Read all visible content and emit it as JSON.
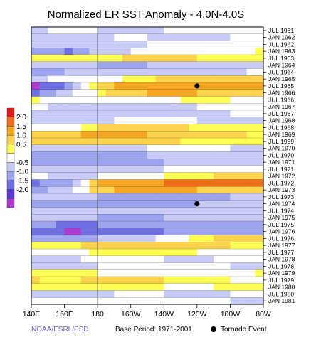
{
  "chart_data": {
    "type": "heatmap",
    "title": "Normalized ER SST Anomaly - 4.0N-4.0S",
    "x_tick_labels": [
      "140E",
      "160E",
      "180",
      "160W",
      "140W",
      "120W",
      "100W",
      "80W"
    ],
    "x_range": [
      140,
      280
    ],
    "y_tick_labels": [
      "JUL 1961",
      "JAN 1962",
      "JUL 1962",
      "JAN 1963",
      "JUL 1963",
      "JAN 1964",
      "JUL 1964",
      "JAN 1965",
      "JUL 1965",
      "JAN 1966",
      "JUL 1966",
      "JAN 1967",
      "JUL 1967",
      "JAN 1968",
      "JUL 1968",
      "JAN 1969",
      "JUL 1969",
      "JAN 1970",
      "JUL 1970",
      "JAN 1971",
      "JUL 1971",
      "JAN 1972",
      "JUL 1972",
      "JAN 1973",
      "JUL 1973",
      "JAN 1974",
      "JUL 1974",
      "JAN 1975",
      "JUL 1975",
      "JAN 1976",
      "JUL 1976",
      "JAN 1977",
      "JUL 1977",
      "JAN 1978",
      "JUL 1978",
      "JAN 1979",
      "JUL 1979",
      "JAN 1980",
      "JUL 1980",
      "JAN 1981"
    ],
    "colorbar_labels": [
      "2.0",
      "1.5",
      "1.0",
      "0.5",
      "-0.5",
      "-1.0",
      "-1.5",
      "-2.0"
    ],
    "colorbar_colors": [
      "#e01a1a",
      "#ef6c1a",
      "#f5a623",
      "#fcd34d",
      "#fefe55",
      "#ffffff",
      "#c7cbf5",
      "#9da4ef",
      "#6d6fe2",
      "#5c3ad6",
      "#b03ad0"
    ],
    "bands": [
      {
        "date": "JUL 1961",
        "anomaly": [
          -0.6,
          -0.4,
          -0.5,
          -0.7,
          -0.5,
          -0.3,
          -0.2,
          -0.4
        ]
      },
      {
        "date": "JAN 1962",
        "anomaly": [
          -0.8,
          -1.0,
          -0.6,
          -0.4,
          -0.6,
          -0.7,
          -0.5,
          -0.3
        ]
      },
      {
        "date": "JUL 1962",
        "anomaly": [
          -0.5,
          -0.7,
          -0.9,
          -0.6,
          -0.4,
          -0.3,
          -0.2,
          -0.1
        ]
      },
      {
        "date": "JAN 1963",
        "anomaly": [
          -1.0,
          -1.6,
          -0.8,
          -0.5,
          -0.3,
          -0.2,
          0.1,
          0.2
        ]
      },
      {
        "date": "JUL 1963",
        "anomaly": [
          0.4,
          0.2,
          0.3,
          0.6,
          0.7,
          0.5,
          0.4,
          0.3
        ]
      },
      {
        "date": "JAN 1964",
        "anomaly": [
          -0.6,
          -0.8,
          -1.0,
          -1.1,
          -0.9,
          -0.7,
          -0.8,
          -0.6
        ]
      },
      {
        "date": "JUL 1964",
        "anomaly": [
          -1.2,
          -1.0,
          -0.8,
          -0.6,
          -0.5,
          -0.7,
          -0.6,
          -0.4
        ]
      },
      {
        "date": "JAN 1965",
        "anomaly": [
          -0.6,
          -0.4,
          -0.2,
          0.3,
          0.6,
          0.8,
          1.0,
          0.9
        ]
      },
      {
        "date": "JUL 1965",
        "anomaly": [
          -2.1,
          -1.4,
          0.9,
          1.2,
          1.4,
          1.3,
          1.2,
          1.1
        ]
      },
      {
        "date": "JAN 1966",
        "anomaly": [
          -1.5,
          -0.8,
          0.4,
          0.9,
          1.1,
          1.0,
          0.8,
          0.6
        ]
      },
      {
        "date": "JUL 1966",
        "anomaly": [
          0.2,
          0.1,
          -0.3,
          -0.2,
          0.1,
          0.3,
          0.2,
          0.1
        ]
      },
      {
        "date": "JAN 1967",
        "anomaly": [
          -0.4,
          -0.6,
          -0.8,
          -0.7,
          -0.6,
          -0.5,
          -0.4,
          -0.3
        ]
      },
      {
        "date": "JUL 1967",
        "anomaly": [
          -0.7,
          -0.9,
          -1.0,
          -0.8,
          -0.6,
          -0.7,
          -0.5,
          -0.4
        ]
      },
      {
        "date": "JAN 1968",
        "anomaly": [
          -0.6,
          -0.8,
          -0.6,
          -0.4,
          -0.3,
          -0.5,
          -0.6,
          -0.7
        ]
      },
      {
        "date": "JUL 1968",
        "anomaly": [
          -0.3,
          -0.2,
          0.6,
          0.9,
          0.7,
          0.4,
          0.3,
          0.2
        ]
      },
      {
        "date": "JAN 1969",
        "anomaly": [
          0.6,
          0.8,
          1.3,
          1.1,
          0.9,
          0.7,
          0.6,
          0.4
        ]
      },
      {
        "date": "JUL 1969",
        "anomaly": [
          0.8,
          0.9,
          1.0,
          0.8,
          0.6,
          0.4,
          0.3,
          0.2
        ]
      },
      {
        "date": "JAN 1970",
        "anomaly": [
          -0.5,
          -0.8,
          -0.9,
          -0.6,
          -0.4,
          -0.3,
          -0.5,
          -0.6
        ]
      },
      {
        "date": "JUL 1970",
        "anomaly": [
          -1.0,
          -1.2,
          -1.3,
          -1.1,
          -0.9,
          -0.8,
          -0.9,
          -0.7
        ]
      },
      {
        "date": "JAN 1971",
        "anomaly": [
          -1.3,
          -1.5,
          -1.4,
          -1.2,
          -1.0,
          -0.9,
          -0.7,
          -0.6
        ]
      },
      {
        "date": "JUL 1971",
        "anomaly": [
          -0.7,
          -0.9,
          -0.8,
          -0.6,
          -0.5,
          -0.4,
          -0.3,
          -0.2
        ]
      },
      {
        "date": "JAN 1972",
        "anomaly": [
          -0.4,
          -0.6,
          -0.5,
          -0.3,
          0.2,
          0.4,
          0.6,
          0.8
        ]
      },
      {
        "date": "JUL 1972",
        "anomaly": [
          -1.6,
          -1.2,
          1.0,
          1.3,
          1.5,
          1.6,
          1.7,
          1.8
        ]
      },
      {
        "date": "JAN 1973",
        "anomaly": [
          -1.2,
          -0.8,
          0.9,
          1.1,
          1.2,
          1.0,
          0.8,
          0.6
        ]
      },
      {
        "date": "JUL 1973",
        "anomaly": [
          -0.6,
          -0.8,
          -1.0,
          -1.2,
          -1.3,
          -1.1,
          -1.0,
          -0.8
        ]
      },
      {
        "date": "JAN 1974",
        "anomaly": [
          -1.0,
          -1.3,
          -1.5,
          -1.4,
          -1.2,
          -1.0,
          -0.9,
          -0.8
        ]
      },
      {
        "date": "JUL 1974",
        "anomaly": [
          -0.8,
          -1.0,
          -0.9,
          -0.7,
          -0.6,
          -0.5,
          -0.7,
          -0.8
        ]
      },
      {
        "date": "JAN 1975",
        "anomaly": [
          -0.6,
          -0.8,
          -1.0,
          -1.1,
          -1.0,
          -0.9,
          -0.8,
          -0.7
        ]
      },
      {
        "date": "JUL 1975",
        "anomaly": [
          -1.2,
          -1.6,
          -1.5,
          -1.3,
          -1.4,
          -1.3,
          -1.2,
          -1.1
        ]
      },
      {
        "date": "JAN 1976",
        "anomaly": [
          -1.5,
          -2.1,
          -1.9,
          -1.6,
          -1.5,
          -1.4,
          -1.2,
          -1.0
        ]
      },
      {
        "date": "JUL 1976",
        "anomaly": [
          -1.0,
          -1.2,
          -1.0,
          -0.8,
          -0.4,
          0.3,
          0.6,
          0.8
        ]
      },
      {
        "date": "JAN 1977",
        "anomaly": [
          0.3,
          0.4,
          0.6,
          0.7,
          0.8,
          0.6,
          0.5,
          0.4
        ]
      },
      {
        "date": "JUL 1977",
        "anomaly": [
          -0.4,
          -0.2,
          0.3,
          0.5,
          0.3,
          0.2,
          0.1,
          -0.2
        ]
      },
      {
        "date": "JAN 1978",
        "anomaly": [
          -0.5,
          -0.6,
          -0.4,
          -0.3,
          -0.5,
          -0.6,
          -0.4,
          -0.3
        ]
      },
      {
        "date": "JUL 1978",
        "anomaly": [
          -0.6,
          -0.7,
          -0.5,
          -0.4,
          -0.3,
          -0.4,
          -0.5,
          -0.6
        ]
      },
      {
        "date": "JAN 1979",
        "anomaly": [
          0.2,
          0.3,
          0.2,
          -0.2,
          -0.3,
          -0.2,
          0.1,
          0.2
        ]
      },
      {
        "date": "JUL 1979",
        "anomaly": [
          0.5,
          0.4,
          0.6,
          0.7,
          0.5,
          0.3,
          0.2,
          0.1
        ]
      },
      {
        "date": "JAN 1980",
        "anomaly": [
          0.3,
          0.5,
          0.4,
          0.3,
          0.2,
          0.1,
          0.3,
          0.4
        ]
      },
      {
        "date": "JUL 1980",
        "anomaly": [
          -0.5,
          -0.7,
          -0.6,
          -0.4,
          -0.5,
          -0.6,
          -0.5,
          -0.4
        ]
      },
      {
        "date": "JAN 1981",
        "anomaly": [
          -0.3,
          -0.5,
          -0.4,
          -0.3,
          -0.2,
          -0.4,
          -0.5,
          -0.6
        ]
      }
    ],
    "tornado_events": [
      {
        "date": "JUL 1965",
        "lon": 240
      },
      {
        "date": "JAN 1974",
        "lon": 240
      }
    ],
    "reference_line_lon": 180,
    "legend": {
      "marker": "Tornado Event"
    }
  },
  "footer": {
    "source": "NOAA/ESRL/PSD",
    "base_period": "Base Period: 1971-2001",
    "legend_label": "Tornado Event"
  }
}
